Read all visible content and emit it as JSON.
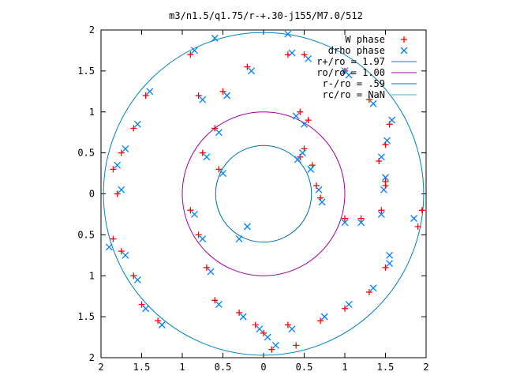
{
  "chart_data": {
    "type": "scatter",
    "title": "m3/n1.5/q1.75/r-+.30-j155/M7.0/512",
    "xlabel": "",
    "ylabel": "",
    "xlim": [
      -2,
      2
    ],
    "ylim": [
      -2,
      2
    ],
    "x_tick_labels": [
      "2",
      "1.5",
      "1",
      "0.5",
      "0",
      "0.5",
      "1",
      "1.5",
      "2"
    ],
    "y_tick_labels": [
      "2",
      "1.5",
      "1",
      "0.5",
      "0",
      "0.5",
      "1",
      "1.5",
      "2"
    ],
    "x_ticks": [
      -2,
      -1.5,
      -1,
      -0.5,
      0,
      0.5,
      1,
      1.5,
      2
    ],
    "y_ticks": [
      2,
      1.5,
      1,
      0.5,
      0,
      -0.5,
      -1,
      -1.5,
      -2
    ],
    "grid": false,
    "legend_position": "top-right",
    "series": [
      {
        "name": "W phase",
        "marker": "plus",
        "color": "#ff0000",
        "points": [
          [
            0.45,
            1.0
          ],
          [
            0.55,
            0.9
          ],
          [
            0.5,
            0.55
          ],
          [
            0.45,
            0.45
          ],
          [
            0.6,
            0.35
          ],
          [
            0.65,
            0.1
          ],
          [
            0.7,
            -0.05
          ],
          [
            1.0,
            -0.3
          ],
          [
            1.2,
            -0.3
          ],
          [
            1.45,
            -0.2
          ],
          [
            1.5,
            0.1
          ],
          [
            1.5,
            0.15
          ],
          [
            1.42,
            0.4
          ],
          [
            1.5,
            0.6
          ],
          [
            1.55,
            0.85
          ],
          [
            1.3,
            1.15
          ],
          [
            1.0,
            1.5
          ],
          [
            0.5,
            1.7
          ],
          [
            0.3,
            1.7
          ],
          [
            -0.2,
            1.55
          ],
          [
            -0.5,
            1.25
          ],
          [
            -0.8,
            1.2
          ],
          [
            -0.6,
            0.8
          ],
          [
            -0.75,
            0.5
          ],
          [
            -0.55,
            0.3
          ],
          [
            -0.9,
            -0.2
          ],
          [
            -0.8,
            -0.5
          ],
          [
            -0.7,
            -0.9
          ],
          [
            -0.6,
            -1.3
          ],
          [
            -0.3,
            -1.45
          ],
          [
            -0.1,
            -1.6
          ],
          [
            0.0,
            -1.7
          ],
          [
            0.3,
            -1.6
          ],
          [
            0.7,
            -1.55
          ],
          [
            1.0,
            -1.4
          ],
          [
            1.3,
            -1.2
          ],
          [
            1.5,
            -0.9
          ],
          [
            0.1,
            -1.9
          ],
          [
            0.4,
            -1.85
          ],
          [
            -1.3,
            -1.55
          ],
          [
            -1.5,
            -1.35
          ],
          [
            -1.6,
            -1.0
          ],
          [
            -1.75,
            -0.7
          ],
          [
            -1.85,
            -0.55
          ],
          [
            -1.8,
            0.0
          ],
          [
            -1.85,
            0.3
          ],
          [
            -1.75,
            0.5
          ],
          [
            -1.6,
            0.8
          ],
          [
            -1.45,
            1.2
          ],
          [
            -0.9,
            1.7
          ],
          [
            1.9,
            -0.4
          ],
          [
            1.95,
            -0.2
          ]
        ]
      },
      {
        "name": "drho phase",
        "marker": "cross",
        "color": "#0080ff",
        "points": [
          [
            0.4,
            0.95
          ],
          [
            0.5,
            0.85
          ],
          [
            0.48,
            0.5
          ],
          [
            0.42,
            0.42
          ],
          [
            0.58,
            0.3
          ],
          [
            0.68,
            0.05
          ],
          [
            0.72,
            -0.1
          ],
          [
            1.0,
            -0.35
          ],
          [
            1.2,
            -0.35
          ],
          [
            1.45,
            -0.25
          ],
          [
            1.48,
            0.05
          ],
          [
            1.5,
            0.2
          ],
          [
            1.45,
            0.45
          ],
          [
            1.52,
            0.65
          ],
          [
            1.58,
            0.9
          ],
          [
            1.35,
            1.1
          ],
          [
            1.05,
            1.45
          ],
          [
            0.55,
            1.65
          ],
          [
            0.35,
            1.72
          ],
          [
            -0.15,
            1.5
          ],
          [
            -0.45,
            1.2
          ],
          [
            -0.75,
            1.15
          ],
          [
            -0.55,
            0.75
          ],
          [
            -0.7,
            0.45
          ],
          [
            -0.5,
            0.25
          ],
          [
            -0.85,
            -0.25
          ],
          [
            -0.75,
            -0.55
          ],
          [
            -0.65,
            -0.95
          ],
          [
            -0.55,
            -1.35
          ],
          [
            -0.25,
            -1.5
          ],
          [
            -0.05,
            -1.65
          ],
          [
            0.05,
            -1.75
          ],
          [
            0.35,
            -1.65
          ],
          [
            0.75,
            -1.5
          ],
          [
            1.05,
            -1.35
          ],
          [
            1.35,
            -1.15
          ],
          [
            1.55,
            -0.85
          ],
          [
            0.15,
            -1.85
          ],
          [
            -1.25,
            -1.6
          ],
          [
            -1.45,
            -1.4
          ],
          [
            -1.55,
            -1.05
          ],
          [
            -1.7,
            -0.75
          ],
          [
            -1.9,
            -0.65
          ],
          [
            -1.75,
            0.05
          ],
          [
            -1.8,
            0.35
          ],
          [
            -1.7,
            0.55
          ],
          [
            -1.55,
            0.85
          ],
          [
            -1.4,
            1.25
          ],
          [
            -0.85,
            1.75
          ],
          [
            -0.6,
            1.9
          ],
          [
            0.3,
            1.95
          ],
          [
            1.0,
            1.5
          ],
          [
            1.55,
            -0.75
          ],
          [
            1.85,
            -0.3
          ],
          [
            -0.2,
            -0.4
          ],
          [
            -0.3,
            -0.55
          ]
        ]
      }
    ],
    "circles": [
      {
        "name": "r+/ro = 1.97",
        "r": 1.97,
        "color": "#0080c0"
      },
      {
        "name": "ro/ro = 1.00",
        "r": 1.0,
        "color": "#a000a0"
      },
      {
        "name": "r-/ro = .59",
        "r": 0.59,
        "color": "#0070b0"
      },
      {
        "name": "rc/ro = NaN",
        "r": null,
        "color": "#40c0c0"
      }
    ]
  }
}
